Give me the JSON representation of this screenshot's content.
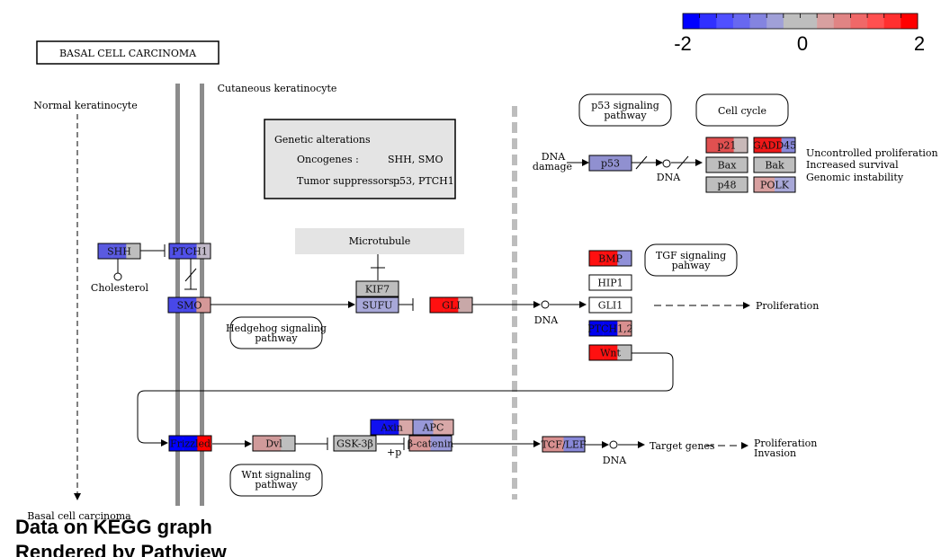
{
  "title": "BASAL  CELL CARCINOMA",
  "legend": {
    "colors": [
      "#0000FF",
      "#3030FF",
      "#5050FF",
      "#6868F0",
      "#8484E0",
      "#A0A0D8",
      "#BEBEBE",
      "#BEBEBE",
      "#D8A0A0",
      "#E08484",
      "#F06868",
      "#FF5050",
      "#FF3030",
      "#FF0000"
    ],
    "ticks": [
      "-2",
      "0",
      "2"
    ]
  },
  "labels": {
    "normal_keratinocyte": "Normal keratinocyte",
    "cutaneous_keratinocyte": "Cutaneous keratinocyte",
    "cholesterol": "Cholesterol",
    "microtubule": "Microtubule",
    "basal_cell_carcinoma": "Basal cell carcinoma",
    "dna_damage_1": "DNA",
    "dna_damage_2": "damage",
    "dna_p53": "DNA",
    "dna_gli": "DNA",
    "dna_tcf": "DNA",
    "proliferation": "Proliferation",
    "target_genes": "Target genes",
    "prolif_invasion_1": "Proliferation",
    "prolif_invasion_2": "Invasion",
    "uncontrolled": "Uncontrolled proliferation",
    "increased_survival": "Increased survival",
    "genomic_instability": "Genomic instability",
    "plus_p": "+p"
  },
  "genetic_alterations": {
    "title": "Genetic alterations",
    "oncogenes_label": "Oncogenes :",
    "oncogenes": "SHH, SMO",
    "suppressors_label": "Tumor suppressors :",
    "suppressors": "p53, PTCH1"
  },
  "pathways": {
    "p53_line1": "p53 signaling",
    "p53_line2": "pathway",
    "cell_cycle": "Cell cycle",
    "tgf_line1": "TGF signaling",
    "tgf_line2": "pahway",
    "hedgehog_line1": "Hedgehog signaling",
    "hedgehog_line2": "pathway",
    "wnt_line1": "Wnt signaling",
    "wnt_line2": "pathway"
  },
  "genes": {
    "SHH": {
      "label": "SHH",
      "colors": [
        "#5A5AE0",
        "#5A5AE0",
        "#BEBEBE"
      ]
    },
    "PTCH1": {
      "label": "PTCH1",
      "colors": [
        "#5050E8",
        "#5050E8",
        "#C0B8C8"
      ]
    },
    "SMO": {
      "label": "SMO",
      "colors": [
        "#4848E8",
        "#4848E8",
        "#D49898"
      ]
    },
    "KIF7": {
      "label": "KIF7",
      "colors": [
        "#BEBEBE"
      ]
    },
    "SUFU": {
      "label": "SUFU",
      "colors": [
        "#A8A8D8"
      ]
    },
    "GLI": {
      "label": "GLI",
      "colors": [
        "#FF1010",
        "#FF1010",
        "#C8A8A8"
      ]
    },
    "p53": {
      "label": "p53",
      "colors": [
        "#9090D0"
      ]
    },
    "p21": {
      "label": "p21",
      "colors": [
        "#E05050",
        "#E05050",
        "#C8B8B8"
      ]
    },
    "GADD45": {
      "label": "GADD45",
      "colors": [
        "#EE1818",
        "#EE1818",
        "#8888D8"
      ]
    },
    "Bax": {
      "label": "Bax",
      "colors": [
        "#BEBEBE"
      ]
    },
    "Bak": {
      "label": "Bak",
      "colors": [
        "#BEBEBE"
      ]
    },
    "p48": {
      "label": "p48",
      "colors": [
        "#BEBEBE"
      ]
    },
    "POLK": {
      "label": "POLK",
      "colors": [
        "#D8A0A0",
        "#A8A8D8"
      ]
    },
    "BMP": {
      "label": "BMP",
      "colors": [
        "#FF1010",
        "#FF1010",
        "#9090D8"
      ]
    },
    "HIP1": {
      "label": "HIP1",
      "colors": [
        "#FFFFFF"
      ]
    },
    "GLI1": {
      "label": "GLI1",
      "colors": [
        "#FFFFFF"
      ]
    },
    "PTCH12": {
      "label": "PTCH1,2",
      "colors": [
        "#0000F0",
        "#0000F0",
        "#D89090"
      ]
    },
    "Wnt": {
      "label": "Wnt",
      "colors": [
        "#FF1010",
        "#FF1010",
        "#BEBEBE"
      ]
    },
    "Frizzled": {
      "label": "Frizzled",
      "colors": [
        "#0000FF",
        "#0000FF",
        "#FF0000"
      ]
    },
    "Dvl": {
      "label": "Dvl",
      "colors": [
        "#D09A9A",
        "#D09A9A",
        "#BEBEBE"
      ]
    },
    "GSK3B": {
      "label": "GSK-3β",
      "colors": [
        "#BEBEBE"
      ]
    },
    "Axin": {
      "label": "Axin",
      "colors": [
        "#1010F0",
        "#1010F0",
        "#D8A8A8"
      ]
    },
    "APC": {
      "label": "APC",
      "colors": [
        "#9898D8",
        "#D8A8A8"
      ]
    },
    "bcatenin": {
      "label": "β-catenin",
      "colors": [
        "#D89898",
        "#9898D8"
      ]
    },
    "TCFLEF": {
      "label": "TCF/LEF",
      "colors": [
        "#D89090",
        "#8888D8"
      ]
    }
  },
  "watermark": {
    "line1": "Data on KEGG graph",
    "line2": "Rendered by Pathview"
  }
}
